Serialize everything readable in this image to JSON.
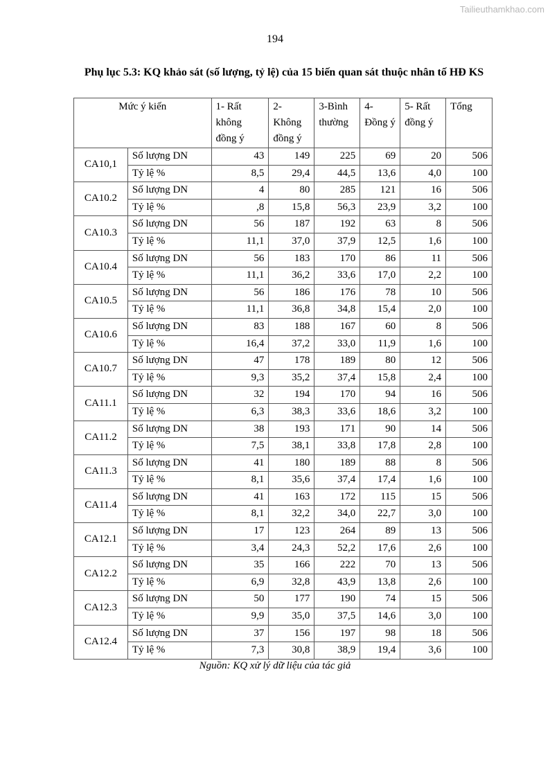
{
  "watermark": "Tailieuthamkhao.com",
  "page_number": "194",
  "title": "Phụ lục 5.3: KQ khảo sát (số lượng, tỷ lệ) của 15 biến quan sát thuộc nhân tố HĐ KS",
  "table": {
    "headers": [
      "Mức ý kiến",
      "1- Rất không đồng ý",
      "2- Không đồng ý",
      "3-Bình thường",
      "4- Đồng ý",
      "5- Rất đồng ý",
      "Tổng"
    ],
    "row_labels": [
      "Số lượng DN",
      "Tỷ lệ %"
    ],
    "groups": [
      {
        "code": "CA10,1",
        "count": [
          "43",
          "149",
          "225",
          "69",
          "20",
          "506"
        ],
        "pct": [
          "8,5",
          "29,4",
          "44,5",
          "13,6",
          "4,0",
          "100"
        ]
      },
      {
        "code": "CA10.2",
        "count": [
          "4",
          "80",
          "285",
          "121",
          "16",
          "506"
        ],
        "pct": [
          ",8",
          "15,8",
          "56,3",
          "23,9",
          "3,2",
          "100"
        ]
      },
      {
        "code": "CA10.3",
        "count": [
          "56",
          "187",
          "192",
          "63",
          "8",
          "506"
        ],
        "pct": [
          "11,1",
          "37,0",
          "37,9",
          "12,5",
          "1,6",
          "100"
        ]
      },
      {
        "code": "CA10.4",
        "count": [
          "56",
          "183",
          "170",
          "86",
          "11",
          "506"
        ],
        "pct": [
          "11,1",
          "36,2",
          "33,6",
          "17,0",
          "2,2",
          "100"
        ]
      },
      {
        "code": "CA10.5",
        "count": [
          "56",
          "186",
          "176",
          "78",
          "10",
          "506"
        ],
        "pct": [
          "11,1",
          "36,8",
          "34,8",
          "15,4",
          "2,0",
          "100"
        ]
      },
      {
        "code": "CA10.6",
        "count": [
          "83",
          "188",
          "167",
          "60",
          "8",
          "506"
        ],
        "pct": [
          "16,4",
          "37,2",
          "33,0",
          "11,9",
          "1,6",
          "100"
        ]
      },
      {
        "code": "CA10.7",
        "count": [
          "47",
          "178",
          "189",
          "80",
          "12",
          "506"
        ],
        "pct": [
          "9,3",
          "35,2",
          "37,4",
          "15,8",
          "2,4",
          "100"
        ]
      },
      {
        "code": "CA11.1",
        "count": [
          "32",
          "194",
          "170",
          "94",
          "16",
          "506"
        ],
        "pct": [
          "6,3",
          "38,3",
          "33,6",
          "18,6",
          "3,2",
          "100"
        ]
      },
      {
        "code": "CA11.2",
        "count": [
          "38",
          "193",
          "171",
          "90",
          "14",
          "506"
        ],
        "pct": [
          "7,5",
          "38,1",
          "33,8",
          "17,8",
          "2,8",
          "100"
        ]
      },
      {
        "code": "CA11.3",
        "count": [
          "41",
          "180",
          "189",
          "88",
          "8",
          "506"
        ],
        "pct": [
          "8,1",
          "35,6",
          "37,4",
          "17,4",
          "1,6",
          "100"
        ]
      },
      {
        "code": "CA11.4",
        "count": [
          "41",
          "163",
          "172",
          "115",
          "15",
          "506"
        ],
        "pct": [
          "8,1",
          "32,2",
          "34,0",
          "22,7",
          "3,0",
          "100"
        ]
      },
      {
        "code": "CA12.1",
        "count": [
          "17",
          "123",
          "264",
          "89",
          "13",
          "506"
        ],
        "pct": [
          "3,4",
          "24,3",
          "52,2",
          "17,6",
          "2,6",
          "100"
        ]
      },
      {
        "code": "CA12.2",
        "count": [
          "35",
          "166",
          "222",
          "70",
          "13",
          "506"
        ],
        "pct": [
          "6,9",
          "32,8",
          "43,9",
          "13,8",
          "2,6",
          "100"
        ]
      },
      {
        "code": "CA12.3",
        "count": [
          "50",
          "177",
          "190",
          "74",
          "15",
          "506"
        ],
        "pct": [
          "9,9",
          "35,0",
          "37,5",
          "14,6",
          "3,0",
          "100"
        ]
      },
      {
        "code": "CA12.4",
        "count": [
          "37",
          "156",
          "197",
          "98",
          "18",
          "506"
        ],
        "pct": [
          "7,3",
          "30,8",
          "38,9",
          "19,4",
          "3,6",
          "100"
        ]
      }
    ]
  },
  "source": "Nguồn: KQ xử lý dữ liệu của tác giả"
}
